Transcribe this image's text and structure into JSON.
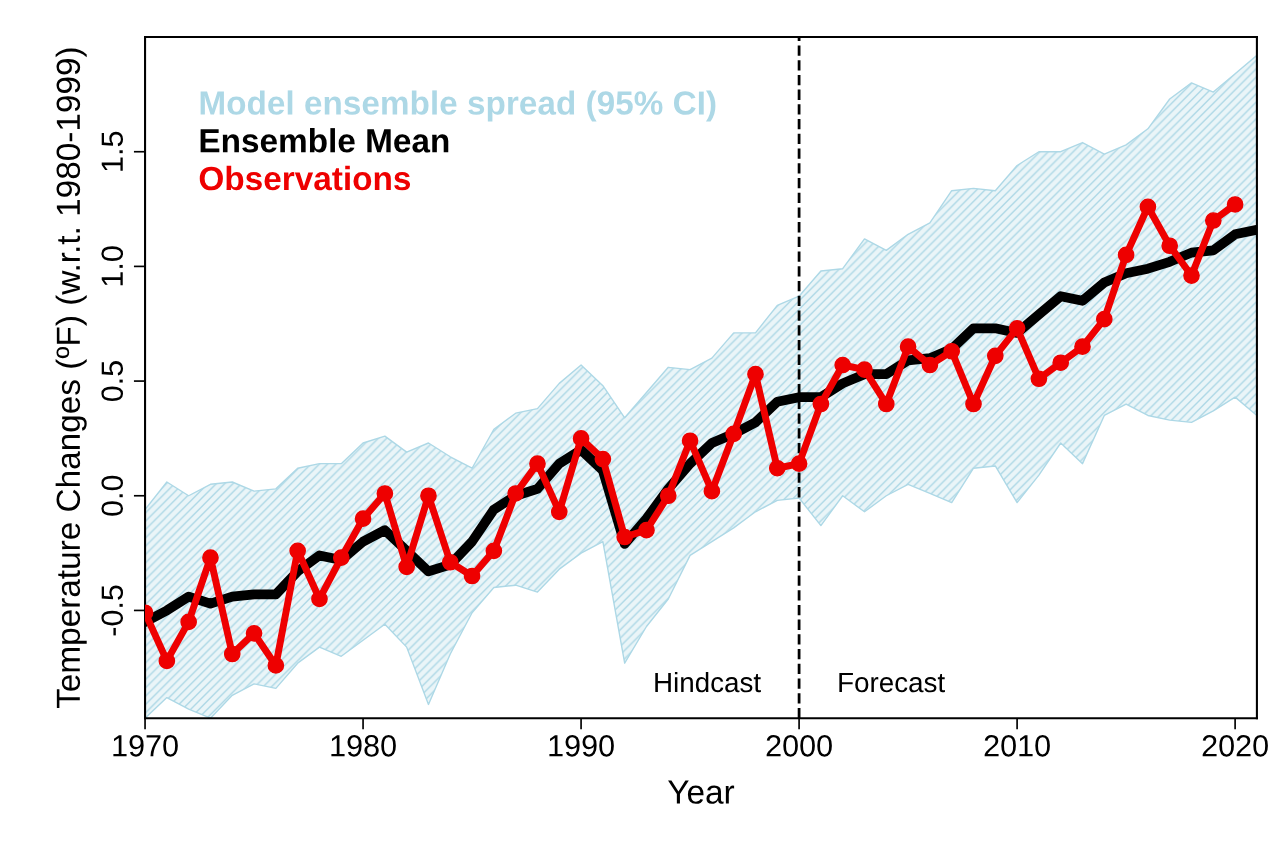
{
  "chart_data": {
    "type": "line",
    "xlabel": "Year",
    "ylabel": "Temperature Changes (ºF) (w.r.t. 1980-1999)",
    "xlim": [
      1970,
      2021
    ],
    "xticks": [
      1970,
      1980,
      1990,
      2000,
      2010,
      2020
    ],
    "ylim": [
      -0.97,
      2.0
    ],
    "yticks": [
      {
        "value": -0.5,
        "label": "-0.5"
      },
      {
        "value": 0,
        "label": "0.0"
      },
      0.5,
      {
        "value": 1,
        "label": "1.0"
      },
      1.5
    ],
    "grid": false,
    "legend": "top left",
    "x": [
      1970,
      1971,
      1972,
      1973,
      1974,
      1975,
      1976,
      1977,
      1978,
      1979,
      1980,
      1981,
      1982,
      1983,
      1984,
      1985,
      1986,
      1987,
      1988,
      1989,
      1990,
      1991,
      1992,
      1993,
      1994,
      1995,
      1996,
      1997,
      1998,
      1999,
      2000,
      2001,
      2002,
      2003,
      2004,
      2005,
      2006,
      2007,
      2008,
      2009,
      2010,
      2011,
      2012,
      2013,
      2014,
      2015,
      2016,
      2017,
      2018,
      2019,
      2020,
      2021
    ],
    "series": [
      {
        "name": "Ensemble Mean",
        "color": "#000000",
        "marker": "none",
        "values": [
          -0.55,
          -0.5,
          -0.44,
          -0.47,
          -0.44,
          -0.43,
          -0.43,
          -0.33,
          -0.26,
          -0.28,
          -0.2,
          -0.15,
          -0.24,
          -0.33,
          -0.3,
          -0.2,
          -0.06,
          0.0,
          0.03,
          0.14,
          0.2,
          0.11,
          -0.21,
          -0.1,
          0.03,
          0.14,
          0.23,
          0.27,
          0.32,
          0.41,
          0.43,
          0.43,
          0.49,
          0.53,
          0.53,
          0.59,
          0.6,
          0.64,
          0.73,
          0.73,
          0.71,
          0.79,
          0.87,
          0.85,
          0.93,
          0.97,
          0.99,
          1.02,
          1.06,
          1.07,
          1.14,
          1.16
        ],
        "lower": [
          -0.97,
          -0.88,
          -0.93,
          -0.97,
          -0.87,
          -0.82,
          -0.84,
          -0.73,
          -0.66,
          -0.7,
          -0.63,
          -0.56,
          -0.66,
          -0.91,
          -0.69,
          -0.51,
          -0.4,
          -0.39,
          -0.42,
          -0.32,
          -0.25,
          -0.2,
          -0.73,
          -0.57,
          -0.45,
          -0.26,
          -0.2,
          -0.14,
          -0.07,
          -0.02,
          -0.01,
          -0.13,
          0.0,
          -0.07,
          0.0,
          0.05,
          0.01,
          -0.03,
          0.12,
          0.13,
          -0.03,
          0.09,
          0.23,
          0.14,
          0.35,
          0.4,
          0.35,
          0.33,
          0.32,
          0.37,
          0.43,
          0.35
        ],
        "upper": [
          -0.06,
          0.06,
          0.0,
          0.05,
          0.06,
          0.02,
          0.03,
          0.12,
          0.14,
          0.14,
          0.23,
          0.26,
          0.19,
          0.23,
          0.17,
          0.12,
          0.29,
          0.36,
          0.38,
          0.49,
          0.57,
          0.48,
          0.34,
          0.45,
          0.56,
          0.55,
          0.6,
          0.71,
          0.71,
          0.83,
          0.87,
          0.98,
          0.99,
          1.12,
          1.07,
          1.14,
          1.19,
          1.33,
          1.34,
          1.33,
          1.44,
          1.5,
          1.5,
          1.54,
          1.49,
          1.53,
          1.6,
          1.73,
          1.8,
          1.76,
          1.84,
          1.92
        ]
      },
      {
        "name": "Observations",
        "color": "#ee0000",
        "marker": "circle",
        "values": [
          -0.51,
          -0.72,
          -0.55,
          -0.27,
          -0.69,
          -0.6,
          -0.74,
          -0.24,
          -0.45,
          -0.27,
          -0.1,
          0.01,
          -0.31,
          0.0,
          -0.29,
          -0.35,
          -0.24,
          0.01,
          0.14,
          -0.07,
          0.25,
          0.16,
          -0.18,
          -0.15,
          0.0,
          0.24,
          0.02,
          0.27,
          0.53,
          0.12,
          0.14,
          0.4,
          0.57,
          0.55,
          0.4,
          0.65,
          0.57,
          0.63,
          0.4,
          0.61,
          0.73,
          0.51,
          0.58,
          0.65,
          0.77,
          1.05,
          1.26,
          1.09,
          0.96,
          1.2,
          1.27,
          null
        ]
      }
    ],
    "ref_lines": [
      {
        "axis": "x",
        "value": 2000,
        "color": "#000000",
        "line_style": "dashed"
      }
    ],
    "annotations": [
      "Model ensemble spread (95% CI)",
      "Hindcast",
      "Forecast"
    ]
  }
}
